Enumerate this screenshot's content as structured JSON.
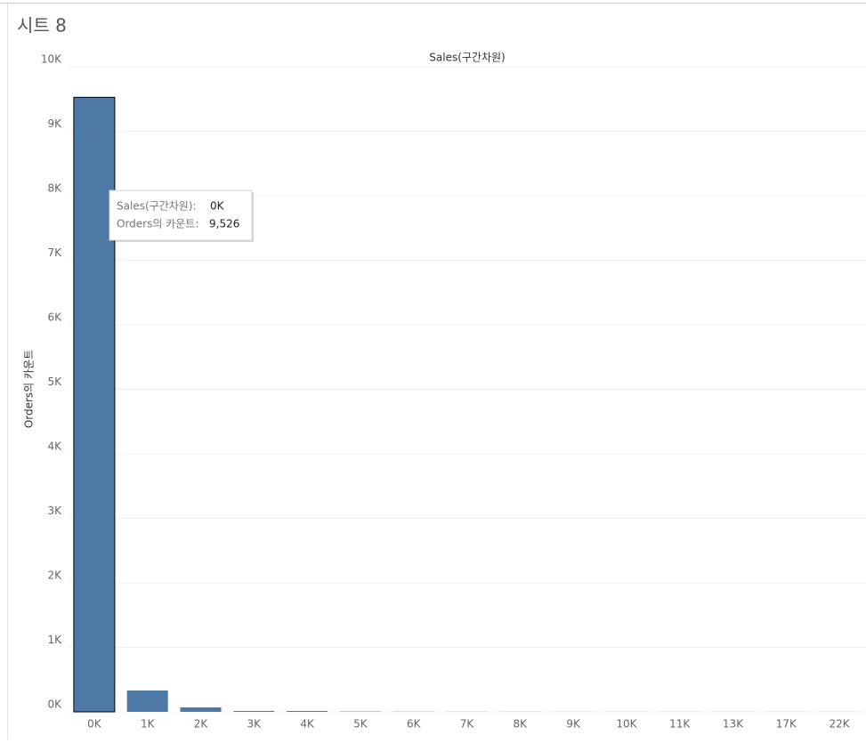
{
  "sheet_title": "시트 8",
  "chart_data": {
    "type": "bar",
    "title": "Sales(구간차원)",
    "y_label": "Orders의 카운트",
    "categories": [
      "0K",
      "1K",
      "2K",
      "3K",
      "4K",
      "5K",
      "6K",
      "7K",
      "8K",
      "9K",
      "10K",
      "11K",
      "13K",
      "17K",
      "22K"
    ],
    "values": [
      9526,
      331,
      69,
      14,
      14,
      5,
      3,
      2,
      2,
      1,
      1,
      1,
      1,
      1,
      1
    ],
    "color": "#4e79a7",
    "ylim": [
      0,
      10000
    ],
    "yticks": [
      {
        "value": 0,
        "label": "0K"
      },
      {
        "value": 1000,
        "label": "1K"
      },
      {
        "value": 2000,
        "label": "2K"
      },
      {
        "value": 3000,
        "label": "3K"
      },
      {
        "value": 4000,
        "label": "4K"
      },
      {
        "value": 5000,
        "label": "5K"
      },
      {
        "value": 6000,
        "label": "6K"
      },
      {
        "value": 7000,
        "label": "7K"
      },
      {
        "value": 8000,
        "label": "8K"
      },
      {
        "value": 9000,
        "label": "9K"
      },
      {
        "value": 10000,
        "label": "10K"
      }
    ],
    "grid": true,
    "tooltip": {
      "rows": [
        {
          "label": "Sales(구간차원):",
          "value": "0K"
        },
        {
          "label": "Orders의 카운트:",
          "value": "9,526"
        }
      ]
    }
  }
}
